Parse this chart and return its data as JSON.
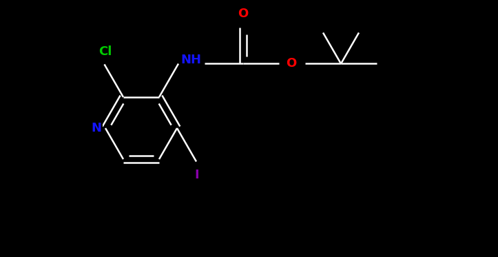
{
  "background_color": "#000000",
  "bond_color": "#ffffff",
  "atom_colors": {
    "N_ring": "#1414ff",
    "N_amine": "#1414ff",
    "O": "#ff0000",
    "Cl": "#00cc00",
    "I": "#8800aa",
    "C": "#ffffff",
    "H": "#ffffff"
  },
  "figsize": [
    7.23,
    3.73
  ],
  "dpi": 100,
  "lw": 1.8,
  "fontsize": 13
}
